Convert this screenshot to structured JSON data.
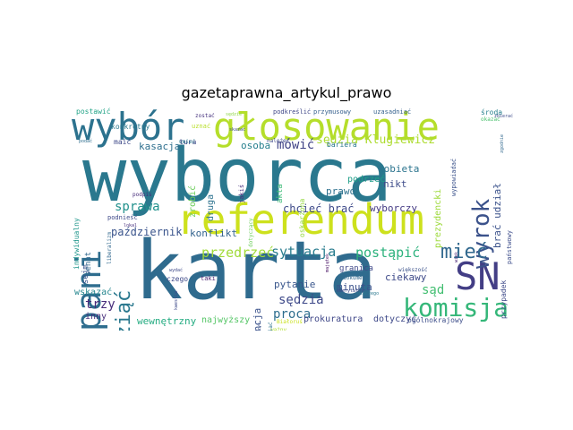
{
  "title": "gazetaprawna_artykul_prawo",
  "words": [
    {
      "id": "wyborca",
      "text": "wyborca",
      "color": "#2a788e"
    },
    {
      "id": "karta",
      "text": "karta",
      "color": "#2f6b8e"
    },
    {
      "id": "referendum",
      "text": "referendum",
      "color": "#cde11d"
    },
    {
      "id": "glosowanie",
      "text": "głosowanie",
      "color": "#b5de2b"
    },
    {
      "id": "wybor",
      "text": "wybór",
      "color": "#2c728e"
    },
    {
      "id": "pani",
      "text": "pani",
      "color": "#2e6d8e"
    },
    {
      "id": "sn",
      "text": "SN",
      "color": "#433e85"
    },
    {
      "id": "komisja",
      "text": "komisja",
      "color": "#35b779"
    },
    {
      "id": "wyrok",
      "text": "wyrok",
      "color": "#3b528b"
    },
    {
      "id": "miec",
      "text": "mieć",
      "color": "#31688e"
    },
    {
      "id": "wziac",
      "text": "wziąć",
      "color": "#2a788e"
    },
    {
      "id": "sedzia_klugiewicz",
      "text": "sędzia Klugiewicz",
      "color": "#addc30"
    },
    {
      "id": "mowic",
      "text": "mówić",
      "color": "#414487"
    },
    {
      "id": "sprawa",
      "text": "sprawa",
      "color": "#21918c"
    },
    {
      "id": "sytuacja",
      "text": "sytuacja",
      "color": "#287c8e"
    },
    {
      "id": "przedrzec",
      "text": "przedrzeć",
      "color": "#a0da39"
    },
    {
      "id": "postapic",
      "text": "postąpić",
      "color": "#2db27d"
    },
    {
      "id": "konflikt",
      "text": "konflikt",
      "color": "#33638d"
    },
    {
      "id": "chciec_brac",
      "text": "chcieć brać",
      "color": "#3e4a89"
    },
    {
      "id": "wyborczy",
      "text": "wyborczy",
      "color": "#443a83"
    },
    {
      "id": "pazdziernik",
      "text": "październik",
      "color": "#3a548c"
    },
    {
      "id": "frekwencja",
      "text": "frekwencja",
      "color": "#3b528b"
    },
    {
      "id": "pytanie",
      "text": "pytanie",
      "color": "#39568c"
    },
    {
      "id": "sedzia",
      "text": "sędzia",
      "color": "#3e4989"
    },
    {
      "id": "proca",
      "text": "proca",
      "color": "#2e6e8e"
    },
    {
      "id": "sad",
      "text": "sąd",
      "color": "#42be71"
    },
    {
      "id": "ciekawy",
      "text": "ciekawy",
      "color": "#3e4a89"
    },
    {
      "id": "minuta",
      "text": "minuta",
      "color": "#3b528b"
    },
    {
      "id": "trzy",
      "text": "trzy",
      "color": "#472c7a"
    },
    {
      "id": "wskazac",
      "text": "wskazać",
      "color": "#24868e"
    },
    {
      "id": "inny",
      "text": "inny",
      "color": "#472d7b"
    },
    {
      "id": "wewnetrzny",
      "text": "wewnętrzny",
      "color": "#25ac82"
    },
    {
      "id": "najwyzszy",
      "text": "najwyższy",
      "color": "#56c667"
    },
    {
      "id": "prokuratura",
      "text": "prokuratura",
      "color": "#3f4788"
    },
    {
      "id": "dotyczyc",
      "text": "dotyczyć",
      "color": "#3e4989"
    },
    {
      "id": "ogolnokrajowy",
      "text": "ogólnokrajowy",
      "color": "#3d4e8a"
    },
    {
      "id": "kasacja",
      "text": "kasacja",
      "color": "#2e6f8e"
    },
    {
      "id": "osoba",
      "text": "osoba",
      "color": "#27808e"
    },
    {
      "id": "kobieta",
      "text": "kobieta",
      "color": "#2b748e"
    },
    {
      "id": "nikt",
      "text": "nikt",
      "color": "#3e4c8a"
    },
    {
      "id": "prawo",
      "text": "prawo",
      "color": "#2d718e"
    },
    {
      "id": "podrzec",
      "text": "podrzeć",
      "color": "#1f9f88"
    },
    {
      "id": "brac_udzial",
      "text": "brać udział",
      "color": "#3b528b"
    },
    {
      "id": "granica",
      "text": "granica",
      "color": "#3f4889"
    },
    {
      "id": "konkretny",
      "text": "konkretny",
      "color": "#2a788e"
    },
    {
      "id": "postawic",
      "text": "postawić",
      "color": "#20a386"
    },
    {
      "id": "podkreslic",
      "text": "podkreślić",
      "color": "#3f4788"
    },
    {
      "id": "przymusowy",
      "text": "przymusowy",
      "color": "#355f8d"
    },
    {
      "id": "uzasadniac",
      "text": "uzasadniać",
      "color": "#34608d"
    },
    {
      "id": "sroda",
      "text": "środa",
      "color": "#27808e"
    },
    {
      "id": "okazac",
      "text": "okazać",
      "color": "#4ac16d"
    },
    {
      "id": "zostac",
      "text": "zostać",
      "color": "#46327e"
    },
    {
      "id": "uznac",
      "text": "uznać",
      "color": "#b8de29"
    },
    {
      "id": "maic",
      "text": "maić",
      "color": "#3e4989"
    },
    {
      "id": "tura",
      "text": "tura",
      "color": "#3f4788"
    },
    {
      "id": "zrobic",
      "text": "zrobić",
      "color": "#6ccd5a"
    },
    {
      "id": "druga",
      "text": "druga",
      "color": "#2c728e"
    },
    {
      "id": "akta",
      "text": "akta",
      "color": "#3aba76"
    },
    {
      "id": "bariera",
      "text": "bariera",
      "color": "#2a788e"
    },
    {
      "id": "prezydencki",
      "text": "prezydencki",
      "color": "#9dd93b"
    },
    {
      "id": "wypowiadac",
      "text": "wypowiadać",
      "color": "#3b528b"
    },
    {
      "id": "panstwowy",
      "text": "państwowy",
      "color": "#3d4d8a"
    },
    {
      "id": "przypadek",
      "text": "przypadek",
      "color": "#3e4a89"
    },
    {
      "id": "oskarzona",
      "text": "oskarżona",
      "color": "#95d840"
    },
    {
      "id": "indywidualny",
      "text": "indywidualny",
      "color": "#1f968b"
    },
    {
      "id": "sejm",
      "text": "sejm",
      "color": "#3a538b"
    },
    {
      "id": "senat",
      "text": "senat",
      "color": "#31688e"
    },
    {
      "id": "podniesc",
      "text": "podnieść",
      "color": "#3e4989"
    },
    {
      "id": "czego",
      "text": "czego",
      "color": "#3e4989"
    },
    {
      "id": "taki",
      "text": "taki",
      "color": "#481f70"
    },
    {
      "id": "dokument",
      "text": "dokument",
      "color": "#31688e"
    },
    {
      "id": "emerytalny",
      "text": "emerytalny",
      "color": "#3e4989"
    },
    {
      "id": "majatek",
      "text": "majątek",
      "color": "#471063"
    },
    {
      "id": "wiek",
      "text": "wiek",
      "color": "#482475"
    },
    {
      "id": "jakis",
      "text": "jakiś",
      "color": "#472f7d"
    },
    {
      "id": "podpis",
      "text": "podpis",
      "color": "#472d7b"
    },
    {
      "id": "zgodnie",
      "text": "zgodnie",
      "color": "#31688e"
    },
    {
      "id": "zbierac",
      "text": "zbierać",
      "color": "#3e4c8a"
    },
    {
      "id": "skazac",
      "text": "skazać",
      "color": "#3d4e8a"
    },
    {
      "id": "sedzie",
      "text": "sędzie",
      "color": "#8ed645"
    },
    {
      "id": "dlaczego",
      "text": "dlaczego",
      "color": "#2a788e"
    },
    {
      "id": "wazny",
      "text": "ważny",
      "color": "#b0dd2f"
    },
    {
      "id": "bialorus",
      "text": "Białoruś",
      "color": "#cae11f"
    },
    {
      "id": "podac",
      "text": "podać",
      "color": "#2e6e8e"
    },
    {
      "id": "liberalizm",
      "text": "liberalizm",
      "color": "#31688e"
    },
    {
      "id": "kwestia",
      "text": "kwestia",
      "color": "#3e4a89"
    },
    {
      "id": "rozmawiac",
      "text": "rozmawiać",
      "color": "#2c728e"
    },
    {
      "id": "dotyczacy",
      "text": "dotyczący",
      "color": "#6ccd5a"
    },
    {
      "id": "umiec",
      "text": "umieć",
      "color": "#2a788e"
    },
    {
      "id": "nalezec",
      "text": "należeć",
      "color": "#3e4989"
    },
    {
      "id": "wiekszosc",
      "text": "większość",
      "color": "#3b528b"
    },
    {
      "id": "lokal",
      "text": "lokal",
      "color": "#472d7b"
    },
    {
      "id": "wydac",
      "text": "wydać",
      "color": "#3e4989"
    },
    {
      "id": "przekroczyc",
      "text": "przekroczyć",
      "color": "#3b528b"
    }
  ]
}
